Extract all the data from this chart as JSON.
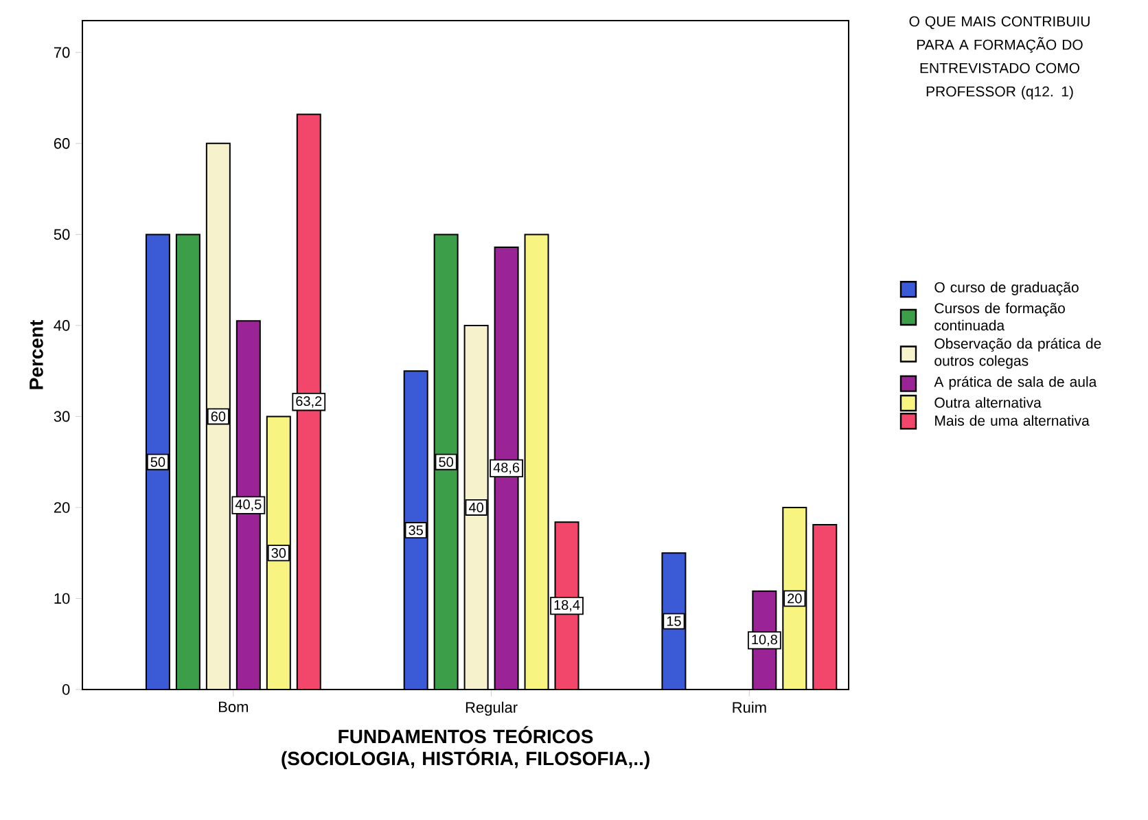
{
  "chart_data": {
    "type": "bar",
    "xlabel": "FUNDAMENTOS TEÓRICOS (SOCIOLOGIA, HISTÓRIA, FILOSOFIA,..)",
    "ylabel": "Percent",
    "legend_title": "O QUE MAIS CONTRIBUIU PARA A FORMAÇÃO DO ENTREVISTADO COMO PROFESSOR (q12. 1)",
    "legend": "right",
    "grid": false,
    "categories": [
      "Bom",
      "Regular",
      "Ruim"
    ],
    "ylim": [
      0,
      73.5
    ],
    "yticks": [
      0,
      10,
      20,
      30,
      40,
      50,
      60,
      70
    ],
    "series": [
      {
        "name": "O curso de graduação",
        "color": "#3a5ad6",
        "values": [
          50,
          35,
          15
        ],
        "value_labels": [
          "50",
          "35",
          "15"
        ]
      },
      {
        "name": "Cursos de formação continuada",
        "color": "#3c9e48",
        "values": [
          50,
          50,
          null
        ],
        "value_labels": [
          null,
          "50",
          null
        ]
      },
      {
        "name": "Observação da prática de outros colegas",
        "color": "#f6f3cc",
        "values": [
          60,
          40,
          null
        ],
        "value_labels": [
          "60",
          "40",
          null
        ]
      },
      {
        "name": "A prática de sala de aula",
        "color": "#9a2496",
        "values": [
          40.5,
          48.6,
          10.8
        ],
        "value_labels": [
          "40,5",
          "48,6",
          "10,8"
        ]
      },
      {
        "name": "Outra alternativa",
        "color": "#f8f482",
        "values": [
          30,
          50,
          20
        ],
        "value_labels": [
          "30",
          null,
          "20"
        ]
      },
      {
        "name": "Mais de uma alternativa",
        "color": "#f2476a",
        "values": [
          63.2,
          18.4,
          18.1
        ],
        "value_labels": [
          "63,2",
          "18,4",
          null
        ]
      }
    ]
  }
}
